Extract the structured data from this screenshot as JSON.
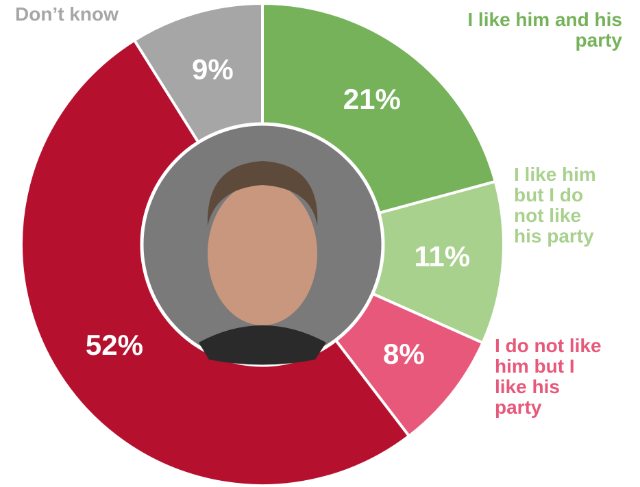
{
  "chart_data": {
    "type": "donut",
    "categories": [
      "I like him and his\nparty",
      "I like him\nbut I do\nnot like\nhis party",
      "I do not like\nhim but I\nlike his\nparty",
      "",
      "Don’t know"
    ],
    "values": [
      21,
      11,
      8,
      52,
      9
    ],
    "value_labels": [
      "21%",
      "11%",
      "8%",
      "52%",
      "9%"
    ],
    "colors": [
      "#75b25a",
      "#a9d18e",
      "#e8587a",
      "#b5112f",
      "#a6a6a6"
    ]
  }
}
